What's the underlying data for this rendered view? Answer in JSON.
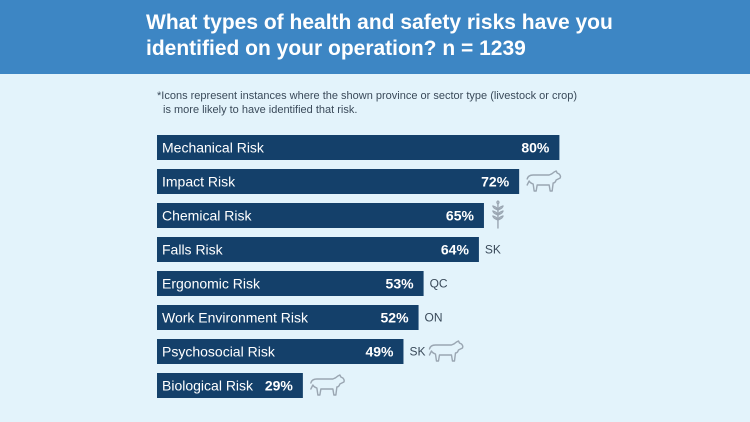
{
  "colors": {
    "header_bg": "#3d86c4",
    "background": "#e3f3fb",
    "bar": "#14406a",
    "text": "#ffffff",
    "tag_text": "#3a4a5a"
  },
  "header": {
    "title": "What types of health and safety risks have you identified on your operation? n = 1239"
  },
  "note": {
    "line1": "*Icons represent instances where the shown province or sector type (livestock or crop)",
    "line2": "is more likely to have identified that risk."
  },
  "chart_data": {
    "type": "bar",
    "orientation": "horizontal",
    "title": "What types of health and safety risks have you identified on your operation? n = 1239",
    "unit": "%",
    "xlim": [
      0,
      100
    ],
    "categories": [
      "Mechanical Risk",
      "Impact Risk",
      "Chemical Risk",
      "Falls Risk",
      "Ergonomic Risk",
      "Work Environment Risk",
      "Psychosocial Risk",
      "Biological Risk"
    ],
    "values": [
      80,
      72,
      65,
      64,
      53,
      52,
      49,
      29
    ],
    "value_labels": [
      "80%",
      "72%",
      "65%",
      "64%",
      "53%",
      "52%",
      "49%",
      "29%"
    ],
    "annotations": [
      {
        "tag": "",
        "icons": []
      },
      {
        "tag": "",
        "icons": [
          "cow-icon"
        ]
      },
      {
        "tag": "",
        "icons": [
          "wheat-icon"
        ]
      },
      {
        "tag": "SK",
        "icons": []
      },
      {
        "tag": "QC",
        "icons": []
      },
      {
        "tag": "ON",
        "icons": []
      },
      {
        "tag": "SK",
        "icons": [
          "cow-icon"
        ]
      },
      {
        "tag": "",
        "icons": [
          "cow-icon"
        ]
      }
    ]
  }
}
